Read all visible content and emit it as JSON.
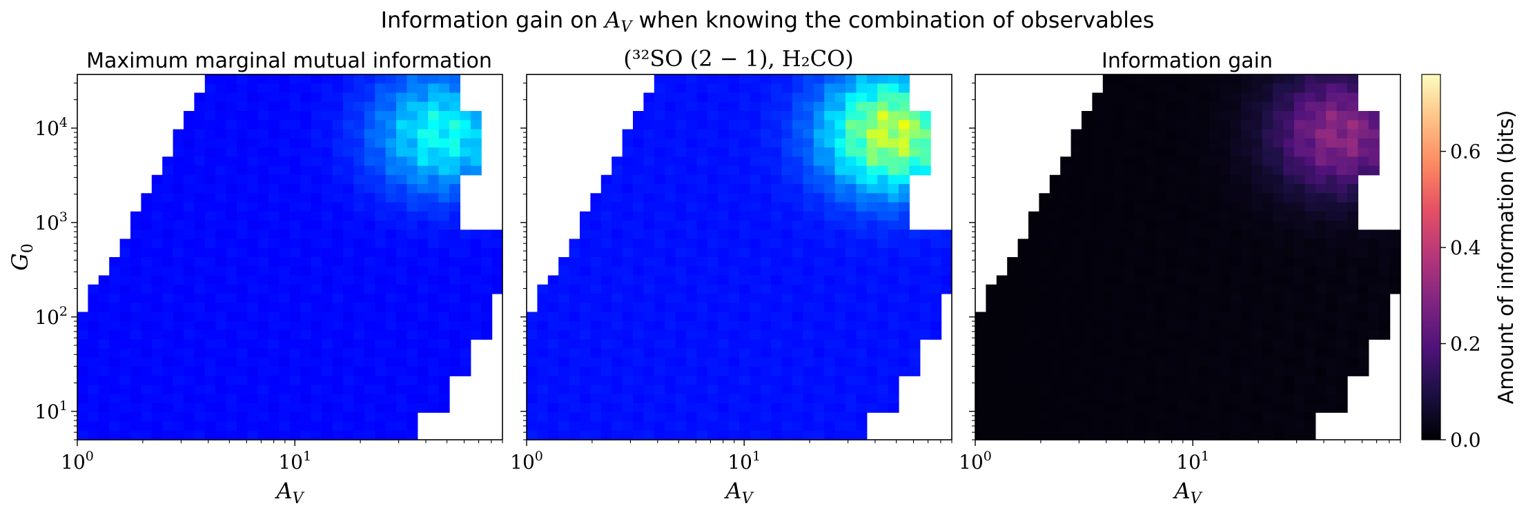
{
  "figure": {
    "suptitle_prefix": "Information gain on ",
    "suptitle_var": "A",
    "suptitle_var_sub": "V",
    "suptitle_suffix": " when knowing the combination of observables"
  },
  "chart_data": [
    {
      "type": "heatmap",
      "title": "Maximum marginal mutual information",
      "xlabel": "A_V",
      "ylabel": "G_0",
      "xscale": "log",
      "yscale": "log",
      "xlim": [
        1,
        90
      ],
      "ylim": [
        5,
        37000
      ],
      "xticks": [
        "10^0",
        "10^1"
      ],
      "yticks": [
        "10^1",
        "10^2",
        "10^3",
        "10^4"
      ],
      "colormap": "jet",
      "vmin": 0,
      "vmax": 1,
      "grid_shape": [
        40,
        40
      ],
      "note_values": "per-cell mutual information in bits, approx; outside-domain cells blank",
      "values_summary": {
        "bulk": 0.12,
        "upper_right_max": 0.35
      }
    },
    {
      "type": "heatmap",
      "title": "(32SO (2-1), H2CO)",
      "xlabel": "A_V",
      "xscale": "log",
      "yscale": "log",
      "xlim": [
        1,
        90
      ],
      "ylim": [
        5,
        37000
      ],
      "xticks": [
        "10^0",
        "10^1"
      ],
      "colormap": "jet",
      "vmin": 0,
      "vmax": 1,
      "grid_shape": [
        40,
        40
      ],
      "values_summary": {
        "bulk": 0.13,
        "upper_right_max": 0.55
      }
    },
    {
      "type": "heatmap",
      "title": "Information gain",
      "xlabel": "A_V",
      "xscale": "log",
      "yscale": "log",
      "xlim": [
        1,
        90
      ],
      "ylim": [
        5,
        37000
      ],
      "xticks": [
        "10^0",
        "10^1"
      ],
      "colormap": "magma",
      "vmin": 0,
      "vmax": 0.76,
      "grid_shape": [
        40,
        40
      ],
      "values_summary": {
        "bulk": 0.01,
        "upper_right_max": 0.3
      },
      "colorbar": {
        "label": "Amount of information (bits)",
        "ticks": [
          0.0,
          0.2,
          0.4,
          0.6
        ],
        "tick_labels": [
          "0.0",
          "0.2",
          "0.4",
          "0.6"
        ]
      }
    }
  ],
  "labels": {
    "panel2_title": "(³²SO (2 − 1), H₂CO)",
    "colorbar_label": "Amount of information (bits)"
  }
}
